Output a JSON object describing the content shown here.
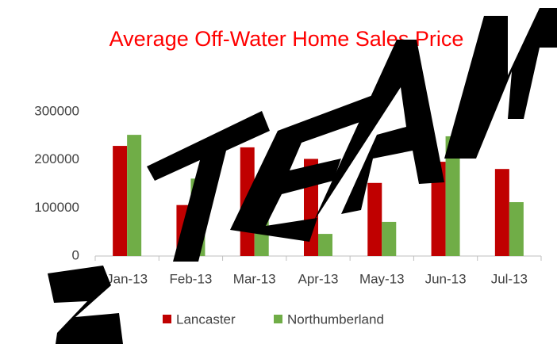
{
  "chart_data": {
    "type": "bar",
    "title": "Average Off-Water Home Sales Price",
    "categories": [
      "Jan-13",
      "Feb-13",
      "Mar-13",
      "Apr-13",
      "May-13",
      "Jun-13",
      "Jul-13"
    ],
    "series": [
      {
        "name": "Lancaster",
        "color": "#c00000",
        "values": [
          229000,
          106000,
          226000,
          202000,
          152000,
          196000,
          181000
        ]
      },
      {
        "name": "Northumberland",
        "color": "#70ad47",
        "values": [
          252000,
          161000,
          84000,
          46000,
          71000,
          249000,
          112000
        ]
      }
    ],
    "ylim": [
      0,
      300000
    ],
    "yticks": [
      0,
      100000,
      200000,
      300000
    ],
    "grid": false,
    "legend": "bottom"
  }
}
